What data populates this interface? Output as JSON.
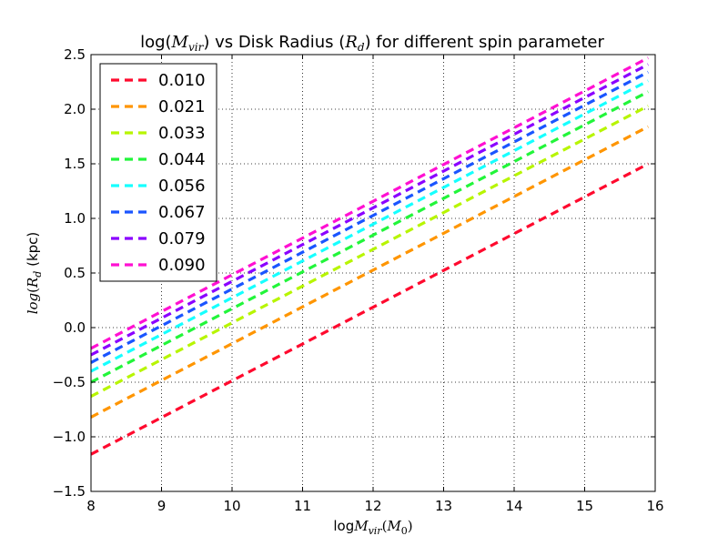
{
  "chart_data": {
    "type": "line",
    "title": {
      "pre": "log(",
      "math1": "M",
      "sub1": "vir",
      "mid": ") vs Disk Radius (",
      "math2": "R",
      "sub2": "d",
      "post": ") for different spin parameter"
    },
    "xlabel": {
      "pre": "log",
      "math": "M",
      "sub": "vir",
      "mid": "(",
      "math2": "M",
      "sub2": "0",
      "post": ")"
    },
    "ylabel": {
      "pre": "log",
      "mid": "(",
      "math": "R",
      "sub": "d",
      "post": " (kpc)"
    },
    "xlim": [
      8,
      16
    ],
    "ylim": [
      -1.5,
      2.5
    ],
    "x_ticks": [
      "8",
      "9",
      "10",
      "11",
      "12",
      "13",
      "14",
      "15",
      "16"
    ],
    "y_ticks": [
      "−1.5",
      "−1.0",
      "−0.5",
      "0.0",
      "0.5",
      "1.0",
      "1.5",
      "2.0",
      "2.5"
    ],
    "grid": true,
    "legend_position": "top-left",
    "x": [
      8,
      15.9
    ],
    "series": [
      {
        "name": "0.010",
        "color": "#ff0a2e",
        "values": [
          -1.16,
          1.5
        ]
      },
      {
        "name": "0.021",
        "color": "#ff9500",
        "values": [
          -0.82,
          1.84
        ]
      },
      {
        "name": "0.033",
        "color": "#b7f500",
        "values": [
          -0.63,
          2.03
        ]
      },
      {
        "name": "0.044",
        "color": "#22f53a",
        "values": [
          -0.5,
          2.16
        ]
      },
      {
        "name": "0.056",
        "color": "#16ffff",
        "values": [
          -0.4,
          2.26
        ]
      },
      {
        "name": "0.067",
        "color": "#1a55ff",
        "values": [
          -0.32,
          2.34
        ]
      },
      {
        "name": "0.079",
        "color": "#8a00ff",
        "values": [
          -0.25,
          2.41
        ]
      },
      {
        "name": "0.090",
        "color": "#ff10d2",
        "values": [
          -0.19,
          2.47
        ]
      }
    ]
  }
}
